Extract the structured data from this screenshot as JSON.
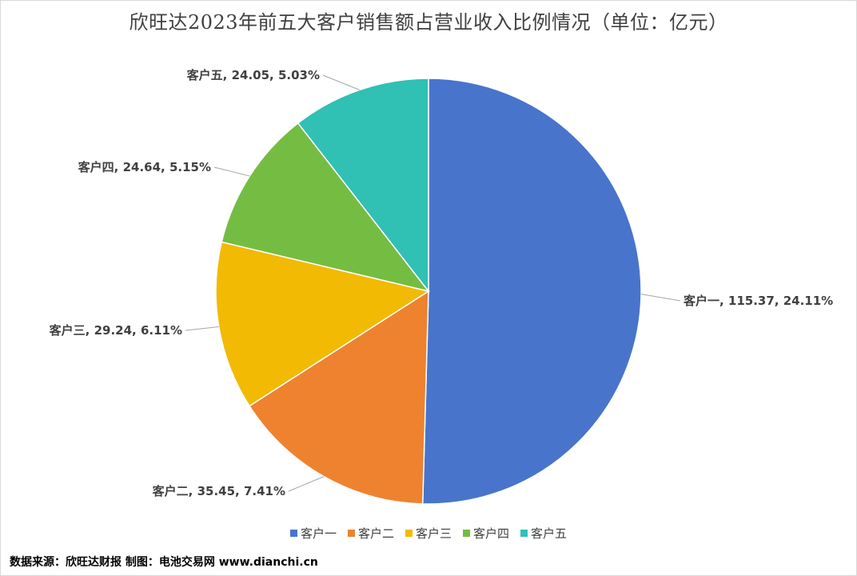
{
  "title": "欣旺达2023年前五大客户销售额占营业收入比例情况（单位：亿元）",
  "source": "数据来源：欣旺达财报  制图：电池交易网 www.dianchi.cn",
  "chart_data": {
    "type": "pie",
    "title": "欣旺达2023年前五大客户销售额占营业收入比例情况（单位：亿元）",
    "start_angle_deg": 0,
    "direction": "clockwise",
    "legend_position": "bottom",
    "slices": [
      {
        "name": "客户一",
        "value": 115.37,
        "percent": "24.11%",
        "label": "客户一, 115.37, 24.11%",
        "color": "#4874CB"
      },
      {
        "name": "客户二",
        "value": 35.45,
        "percent": "7.41%",
        "label": "客户二, 35.45, 7.41%",
        "color": "#EE822F"
      },
      {
        "name": "客户三",
        "value": 29.24,
        "percent": "6.11%",
        "label": "客户三, 29.24, 6.11%",
        "color": "#F2BA02"
      },
      {
        "name": "客户四",
        "value": 24.64,
        "percent": "5.15%",
        "label": "客户四, 24.64, 5.15%",
        "color": "#75BD42"
      },
      {
        "name": "客户五",
        "value": 24.05,
        "percent": "5.03%",
        "label": "客户五, 24.05, 5.03%",
        "color": "#30C0B4"
      }
    ]
  }
}
